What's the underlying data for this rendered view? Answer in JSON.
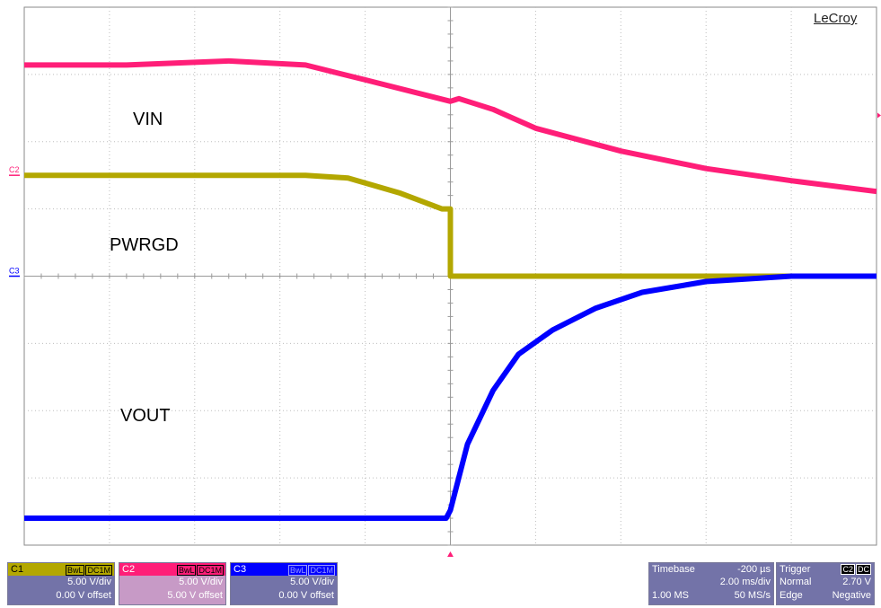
{
  "brand": "LeCroy",
  "trace_labels": {
    "vin": "VIN",
    "pwrgd": "PWRGD",
    "vout": "VOUT"
  },
  "colors": {
    "c1": "#b3a700",
    "c2": "#ff1e78",
    "c3": "#0000ff",
    "grid": "#bdbdbd",
    "panel": "#7373a8",
    "panel_c2": "#c79ac6"
  },
  "chart_data": {
    "type": "line",
    "grid": {
      "xdiv": 10,
      "ydiv": 8,
      "on": true
    },
    "xlim": [
      -10,
      10
    ],
    "volts_per_div": 5.0,
    "series": [
      {
        "name": "VIN",
        "channel": "C2",
        "color": "#ff1e78",
        "points": [
          [
            -10,
            15.7
          ],
          [
            -7.6,
            15.7
          ],
          [
            -5.2,
            16.0
          ],
          [
            -3.4,
            15.7
          ],
          [
            -2.0,
            14.6
          ],
          [
            0.0,
            13.0
          ],
          [
            0.2,
            13.2
          ],
          [
            1.0,
            12.4
          ],
          [
            2.0,
            11.0
          ],
          [
            4.0,
            9.3
          ],
          [
            6.0,
            8.0
          ],
          [
            8.0,
            7.1
          ],
          [
            10,
            6.3
          ]
        ]
      },
      {
        "name": "PWRGD",
        "channel": "C1",
        "color": "#b3a700",
        "points": [
          [
            -10,
            7.5
          ],
          [
            -3.4,
            7.5
          ],
          [
            -2.4,
            7.3
          ],
          [
            -1.2,
            6.2
          ],
          [
            -0.2,
            5.0
          ],
          [
            0.0,
            5.0
          ],
          [
            0.0,
            0.0
          ],
          [
            10,
            0.0
          ]
        ]
      },
      {
        "name": "VOUT",
        "channel": "C3",
        "color": "#0000ff",
        "points": [
          [
            -10,
            -18.0
          ],
          [
            -0.1,
            -18.0
          ],
          [
            0.0,
            -17.4
          ],
          [
            0.4,
            -12.5
          ],
          [
            1.0,
            -8.5
          ],
          [
            1.6,
            -5.8
          ],
          [
            2.4,
            -4.0
          ],
          [
            3.4,
            -2.4
          ],
          [
            4.5,
            -1.2
          ],
          [
            6.0,
            -0.4
          ],
          [
            8.0,
            0.0
          ],
          [
            10,
            0.0
          ]
        ]
      }
    ],
    "markers": {
      "c2": "C2",
      "c3": "C3"
    }
  },
  "channels": [
    {
      "id": "C1",
      "tags": [
        "BwL",
        "DC1M"
      ],
      "vdiv": "5.00 V/div",
      "offset": "0.00 V offset"
    },
    {
      "id": "C2",
      "tags": [
        "BwL",
        "DC1M"
      ],
      "vdiv": "5.00 V/div",
      "offset": "5.00 V offset"
    },
    {
      "id": "C3",
      "tags": [
        "BwL",
        "DC1M"
      ],
      "vdiv": "5.00 V/div",
      "offset": "0.00 V offset"
    }
  ],
  "timebase": {
    "label": "Timebase",
    "delay": "-200 µs",
    "tdiv": "2.00 ms/div",
    "samples": "1.00 MS",
    "rate": "50 MS/s"
  },
  "trigger": {
    "label": "Trigger",
    "tags": [
      "C2",
      "DC"
    ],
    "mode": "Normal",
    "level": "2.70 V",
    "type": "Edge",
    "slope": "Negative"
  }
}
